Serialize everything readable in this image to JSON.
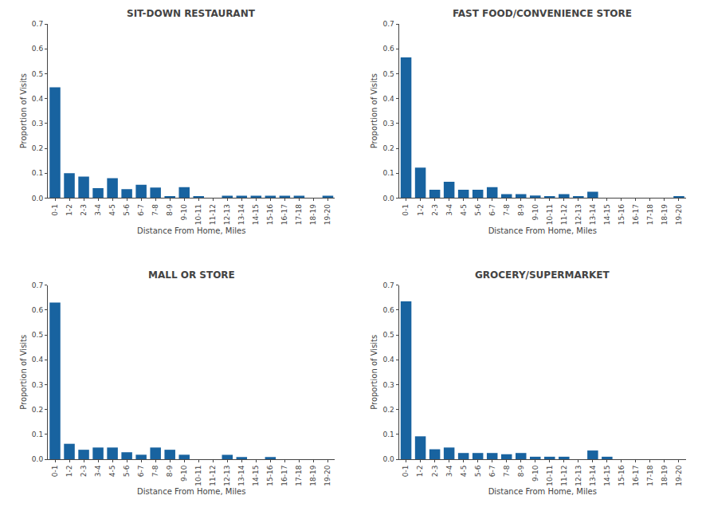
{
  "chart_data": [
    {
      "type": "bar",
      "title": "SIT-DOWN RESTAURANT",
      "categories": [
        "0-1",
        "1-2",
        "2-3",
        "3-4",
        "4-5",
        "5-6",
        "6-7",
        "7-8",
        "8-9",
        "9-10",
        "10-11",
        "11-12",
        "12-13",
        "13-14",
        "14-15",
        "15-16",
        "16-17",
        "17-18",
        "18-19",
        "19-20"
      ],
      "values": [
        0.445,
        0.1,
        0.086,
        0.04,
        0.08,
        0.036,
        0.053,
        0.042,
        0.008,
        0.044,
        0.008,
        0.0,
        0.009,
        0.009,
        0.009,
        0.009,
        0.009,
        0.009,
        0.0,
        0.009
      ],
      "color": "#1863a0",
      "xlabel": "Distance From Home, Miles",
      "ylabel": "Proportion of Visits",
      "ylim": [
        0,
        0.7
      ],
      "yticks": [
        {
          "value": 0,
          "label": "0.0"
        },
        0.1,
        0.2,
        0.3,
        0.4,
        0.5,
        0.6,
        0.7
      ],
      "grid": false
    },
    {
      "type": "bar",
      "title": "FAST FOOD/CONVENIENCE STORE",
      "categories": [
        "0-1",
        "1-2",
        "2-3",
        "3-4",
        "4-5",
        "5-6",
        "6-7",
        "7-8",
        "8-9",
        "9-10",
        "10-11",
        "11-12",
        "12-13",
        "13-14",
        "14-15",
        "15-16",
        "16-17",
        "17-18",
        "18-19",
        "19-20"
      ],
      "values": [
        0.565,
        0.122,
        0.033,
        0.065,
        0.033,
        0.033,
        0.044,
        0.016,
        0.016,
        0.01,
        0.008,
        0.016,
        0.008,
        0.025,
        0.0,
        0.0,
        0.0,
        0.0,
        0.0,
        0.008
      ],
      "color": "#1863a0",
      "xlabel": "Distance From Home, Miles",
      "ylabel": "Proportion of Visits",
      "ylim": [
        0,
        0.7
      ],
      "yticks": [
        {
          "value": 0,
          "label": "0.0"
        },
        0.1,
        0.2,
        0.3,
        0.4,
        0.5,
        0.6,
        0.7
      ],
      "grid": false
    },
    {
      "type": "bar",
      "title": "MALL OR STORE",
      "categories": [
        "0-1",
        "1-2",
        "2-3",
        "3-4",
        "4-5",
        "5-6",
        "6-7",
        "7-8",
        "8-9",
        "9-10",
        "10-11",
        "11-12",
        "12-13",
        "13-14",
        "14-15",
        "15-16",
        "16-17",
        "17-18",
        "18-19",
        "19-20"
      ],
      "values": [
        0.63,
        0.062,
        0.038,
        0.047,
        0.047,
        0.028,
        0.018,
        0.047,
        0.038,
        0.018,
        0.0,
        0.0,
        0.018,
        0.009,
        0.0,
        0.009,
        0.0,
        0.0,
        0.0,
        0.0
      ],
      "color": "#1863a0",
      "xlabel": "Distance From Home, Miles",
      "ylabel": "Proportion of Visits",
      "ylim": [
        0,
        0.7
      ],
      "yticks": [
        {
          "value": 0,
          "label": "0.0"
        },
        0.1,
        0.2,
        0.3,
        0.4,
        0.5,
        0.6,
        0.7
      ],
      "grid": false
    },
    {
      "type": "bar",
      "title": "GROCERY/SUPERMARKET",
      "categories": [
        "0-1",
        "1-2",
        "2-3",
        "3-4",
        "4-5",
        "5-6",
        "6-7",
        "7-8",
        "8-9",
        "9-10",
        "10-11",
        "11-12",
        "12-13",
        "13-14",
        "14-15",
        "15-16",
        "16-17",
        "17-18",
        "18-19",
        "19-20"
      ],
      "values": [
        0.635,
        0.092,
        0.04,
        0.047,
        0.025,
        0.025,
        0.025,
        0.02,
        0.025,
        0.01,
        0.01,
        0.01,
        0.0,
        0.035,
        0.01,
        0.0,
        0.0,
        0.0,
        0.0,
        0.0
      ],
      "color": "#1863a0",
      "xlabel": "Distance From Home, Miles",
      "ylabel": "Proportion of Visits",
      "ylim": [
        0,
        0.7
      ],
      "yticks": [
        {
          "value": 0,
          "label": "0.0"
        },
        0.1,
        0.2,
        0.3,
        0.4,
        0.5,
        0.6,
        0.7
      ],
      "grid": false
    }
  ]
}
